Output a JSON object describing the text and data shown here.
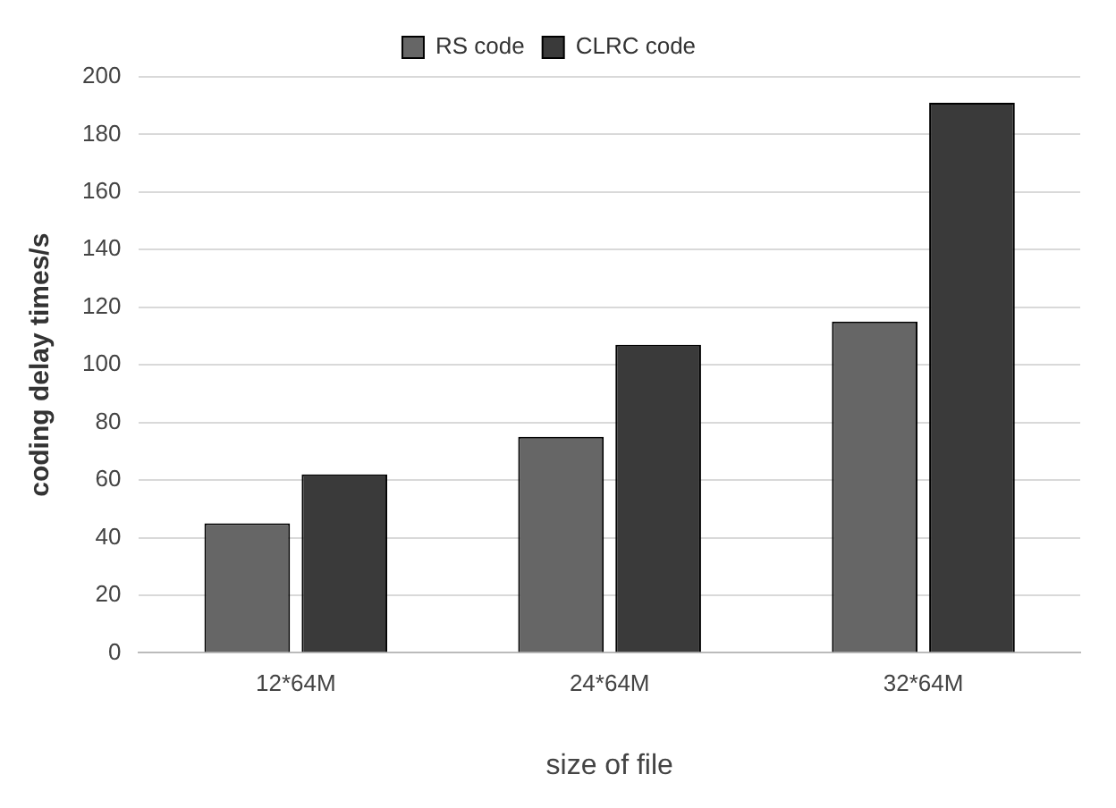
{
  "chart_data": {
    "type": "bar",
    "xlabel": "size of file",
    "ylabel": "coding delay times/s",
    "categories": [
      "12*64M",
      "24*64M",
      "32*64M"
    ],
    "series": [
      {
        "name": "RS code",
        "color": "#666666",
        "values": [
          45,
          75,
          115
        ]
      },
      {
        "name": "CLRC code",
        "color": "#3a3a3a",
        "values": [
          62,
          107,
          191
        ]
      }
    ],
    "ylim": [
      0,
      200
    ],
    "yticks": [
      0,
      20,
      40,
      60,
      80,
      100,
      120,
      140,
      160,
      180,
      200
    ],
    "grid": "y",
    "legend": "top"
  }
}
